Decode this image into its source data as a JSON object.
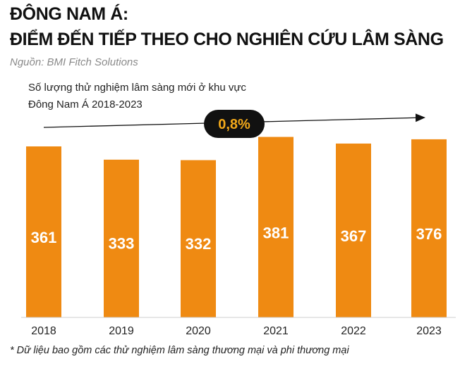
{
  "header": {
    "title_line1": "ĐÔNG NAM Á:",
    "title_line2": "ĐIỂM ĐẾN TIẾP THEO CHO NGHIÊN CỨU LÂM SÀNG",
    "source": "Nguồn: BMI Fitch Solutions"
  },
  "chart_data": {
    "type": "bar",
    "title": "Số lượng thử nghiệm lâm sàng mới ở khu vực Đông Nam Á 2018-2023",
    "title_line1": "Số lượng thử nghiệm lâm sàng mới ở khu vực",
    "title_line2": "Đông Nam Á 2018-2023",
    "categories": [
      "2018",
      "2019",
      "2020",
      "2021",
      "2022",
      "2023"
    ],
    "values": [
      361,
      333,
      332,
      381,
      367,
      376
    ],
    "data_labels": [
      "361",
      "333",
      "332",
      "381",
      "367",
      "376"
    ],
    "annotation": "0,8%",
    "bar_color": "#ef8a12",
    "annotation_bg": "#111111",
    "annotation_text_color": "#f3a91a",
    "grid": false,
    "legend": "none"
  },
  "footnote": "* Dữ liệu bao gồm các thử nghiệm lâm sàng thương mại và phi thương mại"
}
